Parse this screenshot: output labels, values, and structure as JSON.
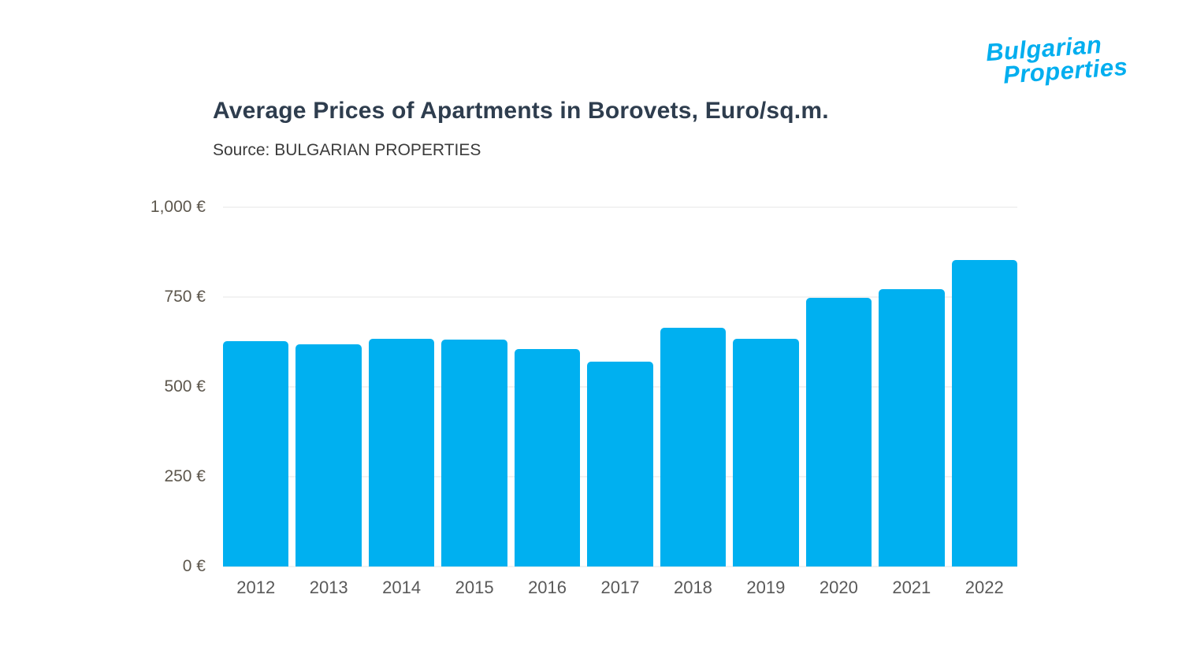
{
  "header": {
    "title": "Average Prices of Apartments in Borovets, Euro/sq.m.",
    "source": "Source: BULGARIAN PROPERTIES"
  },
  "logo": {
    "line1": "Bulgarian",
    "line2": "Properties",
    "color": "#00aeef"
  },
  "chart_data": {
    "type": "bar",
    "title": "Average Prices of Apartments in Borovets, Euro/sq.m.",
    "subtitle": "Source: BULGARIAN PROPERTIES",
    "categories": [
      "2012",
      "2013",
      "2014",
      "2015",
      "2016",
      "2017",
      "2018",
      "2019",
      "2020",
      "2021",
      "2022"
    ],
    "values": [
      628,
      618,
      634,
      632,
      606,
      571,
      664,
      634,
      747,
      771,
      853
    ],
    "xlabel": "",
    "ylabel": "",
    "ylim": [
      0,
      1000
    ],
    "yticks": [
      {
        "value": 0,
        "label": "0 €"
      },
      {
        "value": 250,
        "label": "250 €"
      },
      {
        "value": 500,
        "label": "500 €"
      },
      {
        "value": 750,
        "label": "750 €"
      },
      {
        "value": 1000,
        "label": "1,000 €"
      }
    ],
    "bar_color": "#00b0f0",
    "grid": true,
    "legend": false
  }
}
